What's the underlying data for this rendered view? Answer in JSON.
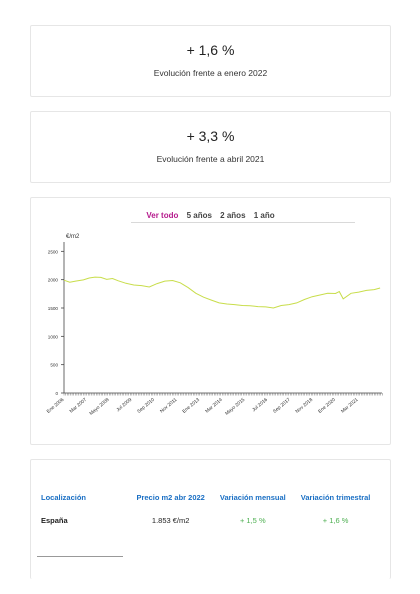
{
  "stat1": {
    "value": "+ 1,6 %",
    "label": "Evolución frente a enero 2022"
  },
  "stat2": {
    "value": "+ 3,3 %",
    "label": "Evolución frente a abril 2021"
  },
  "tabs": [
    "Ver todo",
    "5 años",
    "2 años",
    "1 año"
  ],
  "chart_data": {
    "type": "line",
    "ylabel": "€/m2",
    "ylim": [
      0,
      2700
    ],
    "yticks": [
      0,
      500,
      1000,
      1500,
      2000,
      2500
    ],
    "xlim": [
      2006.0,
      2022.4
    ],
    "xtick_labels": [
      "Ene 2006",
      "Mar 2007",
      "Mayo 2008",
      "Jul 2009",
      "Sep 2010",
      "Nov 2011",
      "Ene 2013",
      "Mar 2014",
      "Mayo 2015",
      "Jul 2016",
      "Sep 2017",
      "Nov 2018",
      "Ene 2020",
      "Mar 2021"
    ],
    "xtick_positions": [
      2006.0,
      2007.17,
      2008.33,
      2009.5,
      2010.67,
      2011.83,
      2013.0,
      2014.17,
      2015.33,
      2016.5,
      2017.67,
      2018.83,
      2020.0,
      2021.17
    ],
    "color": "#c8dd4a",
    "series": [
      {
        "x": [
          2006.0,
          2006.3,
          2006.6,
          2007.0,
          2007.3,
          2007.6,
          2007.9,
          2008.2,
          2008.5,
          2008.8,
          2009.2,
          2009.6,
          2010.0,
          2010.4,
          2010.8,
          2011.2,
          2011.6,
          2012.0,
          2012.4,
          2012.8,
          2013.2,
          2013.6,
          2014.0,
          2014.4,
          2014.8,
          2015.2,
          2015.6,
          2016.0,
          2016.4,
          2016.8,
          2017.2,
          2017.6,
          2018.0,
          2018.4,
          2018.8,
          2019.2,
          2019.6,
          2020.0,
          2020.2,
          2020.4,
          2020.8,
          2021.2,
          2021.6,
          2022.0,
          2022.3
        ],
        "y": [
          1990,
          1955,
          1975,
          1995,
          2030,
          2045,
          2040,
          2005,
          2020,
          1980,
          1935,
          1905,
          1895,
          1870,
          1930,
          1975,
          1985,
          1945,
          1860,
          1760,
          1690,
          1640,
          1590,
          1570,
          1560,
          1545,
          1540,
          1525,
          1520,
          1500,
          1545,
          1560,
          1590,
          1650,
          1700,
          1730,
          1760,
          1755,
          1790,
          1660,
          1760,
          1780,
          1810,
          1825,
          1853
        ]
      }
    ]
  },
  "table": {
    "headers": [
      "Localización",
      "Precio m2 abr 2022",
      "Variación mensual",
      "Variación trimestral"
    ],
    "rows": [
      [
        "España",
        "1.853 €/m2",
        "+ 1,5 %",
        "+ 1,6 %"
      ]
    ]
  }
}
